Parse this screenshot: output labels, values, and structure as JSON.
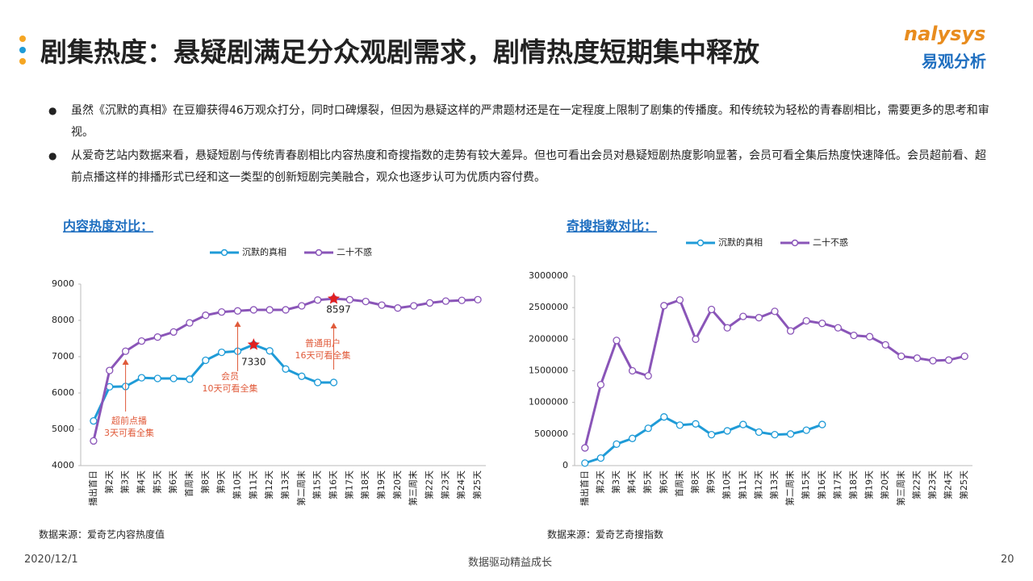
{
  "header": {
    "title": "剧集热度：悬疑剧满足分众观剧需求，剧情热度短期集中释放",
    "logo_text": "nalysys",
    "logo_cn": "易观分析"
  },
  "bullets": [
    "虽然《沉默的真相》在豆瓣获得46万观众打分，同时口碑爆裂，但因为悬疑这样的严肃题材还是在一定程度上限制了剧集的传播度。和传统较为轻松的青春剧相比，需要更多的思考和审视。",
    "从爱奇艺站内数据来看，悬疑短剧与传统青春剧相比内容热度和奇搜指数的走势有较大差异。但也可看出会员对悬疑短剧热度影响显著，会员可看全集后热度快速降低。会员超前看、超前点播这样的排播形式已经和这一类型的创新短剧完美融合，观众也逐步认可为优质内容付费。"
  ],
  "chart_data": [
    {
      "type": "line",
      "title": "内容热度对比：",
      "source": "数据来源：爱奇艺内容热度值",
      "categories": [
        "播出首日",
        "第2天",
        "第3天",
        "第4天",
        "第5天",
        "第6天",
        "首周末",
        "第8天",
        "第9天",
        "第10天",
        "第11天",
        "第12天",
        "第13天",
        "第二周末",
        "第15天",
        "第16天",
        "第17天",
        "第18天",
        "第19天",
        "第20天",
        "第三周末",
        "第22天",
        "第23天",
        "第24天",
        "第25天"
      ],
      "series": [
        {
          "name": "沉默的真相",
          "color": "#1f9bd7",
          "values": [
            5230,
            6170,
            6180,
            6420,
            6400,
            6400,
            6380,
            6900,
            7120,
            7150,
            7330,
            7160,
            6660,
            6460,
            6290,
            6290,
            null,
            null,
            null,
            null,
            null,
            null,
            null,
            null,
            null
          ]
        },
        {
          "name": "二十不惑",
          "color": "#8a55b8",
          "values": [
            4680,
            6620,
            7150,
            7430,
            7540,
            7680,
            7930,
            8140,
            8230,
            8260,
            8290,
            8290,
            8290,
            8400,
            8560,
            8597,
            8570,
            8520,
            8420,
            8340,
            8400,
            8480,
            8530,
            8550,
            8570
          ]
        }
      ],
      "ylim": [
        4000,
        9000
      ],
      "yticks": [
        4000,
        5000,
        6000,
        7000,
        8000,
        9000
      ],
      "annotations": [
        [
          "超前点播",
          "3天可看全集"
        ],
        [
          "会员",
          "10天可看全集"
        ],
        [
          "普通用户",
          "16天可看全集"
        ]
      ]
    },
    {
      "type": "line",
      "title": "奇搜指数对比：",
      "source": "数据来源：爱奇艺奇搜指数",
      "categories": [
        "播出首日",
        "第2天",
        "第3天",
        "第4天",
        "第5天",
        "第6天",
        "首周末",
        "第8天",
        "第9天",
        "第10天",
        "第11天",
        "第12天",
        "第13天",
        "第二周末",
        "第15天",
        "第16天",
        "第17天",
        "第18天",
        "第19天",
        "第20天",
        "第三周末",
        "第22天",
        "第23天",
        "第24天",
        "第25天"
      ],
      "series": [
        {
          "name": "沉默的真相",
          "color": "#1f9bd7",
          "values": [
            40000,
            120000,
            340000,
            430000,
            590000,
            770000,
            640000,
            660000,
            490000,
            550000,
            650000,
            530000,
            490000,
            500000,
            560000,
            650000,
            null,
            null,
            null,
            null,
            null,
            null,
            null,
            null,
            null
          ]
        },
        {
          "name": "二十不惑",
          "color": "#8a55b8",
          "values": [
            280000,
            1280000,
            1980000,
            1500000,
            1420000,
            2530000,
            2620000,
            2000000,
            2470000,
            2180000,
            2360000,
            2340000,
            2440000,
            2130000,
            2290000,
            2250000,
            2180000,
            2060000,
            2040000,
            1910000,
            1730000,
            1700000,
            1660000,
            1670000,
            1730000
          ]
        }
      ],
      "ylim": [
        0,
        3000000
      ],
      "yticks": [
        0,
        500000,
        1000000,
        1500000,
        2000000,
        2500000,
        3000000
      ]
    }
  ],
  "footer": {
    "date": "2020/12/1",
    "slogan": "数据驱动精益成长",
    "page": "20"
  }
}
